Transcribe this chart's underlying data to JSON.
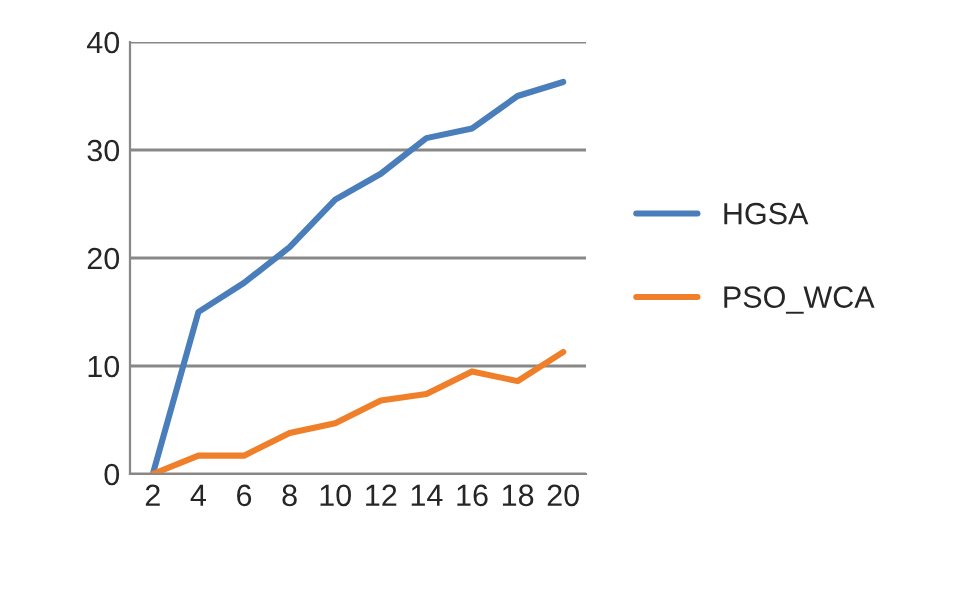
{
  "chart_data": {
    "type": "line",
    "categories": [
      "2",
      "4",
      "6",
      "8",
      "10",
      "12",
      "14",
      "16",
      "18",
      "20"
    ],
    "series": [
      {
        "name": "HGSA",
        "color": "#4a7ebb",
        "values": [
          0,
          15,
          17.7,
          21,
          25.4,
          27.8,
          31.1,
          32,
          35,
          36.3
        ]
      },
      {
        "name": "PSO_WCA",
        "color": "#f07f2a",
        "values": [
          0,
          1.7,
          1.7,
          3.8,
          4.7,
          6.8,
          7.4,
          9.5,
          8.6,
          11.3
        ]
      }
    ],
    "ylim": [
      0,
      40
    ],
    "yticks": [
      0,
      10,
      20,
      30,
      40
    ],
    "grid": "y",
    "legend": "right",
    "marker": "none",
    "line_style": "solid"
  }
}
